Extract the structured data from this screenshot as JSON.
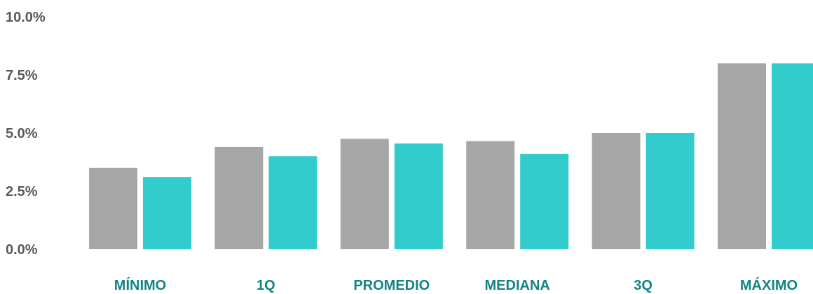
{
  "chart_data": {
    "type": "bar",
    "categories": [
      "MÍNIMO",
      "1Q",
      "PROMEDIO",
      "MEDIANA",
      "3Q",
      "MÁXIMO"
    ],
    "series": [
      {
        "values": [
          3.5,
          4.4,
          4.75,
          4.65,
          5.0,
          8.0
        ],
        "color": "#a6a6a6"
      },
      {
        "values": [
          3.1,
          4.0,
          4.55,
          4.1,
          5.0,
          8.0
        ],
        "color": "#33cccc"
      }
    ],
    "yticks": [
      "0.0%",
      "2.5%",
      "5.0%",
      "7.5%",
      "10.0%"
    ],
    "ytick_values": [
      0,
      2.5,
      5,
      7.5,
      10
    ],
    "ylim": [
      0,
      10
    ],
    "grid": false,
    "legend": "none",
    "category_label_color": "#138484"
  }
}
